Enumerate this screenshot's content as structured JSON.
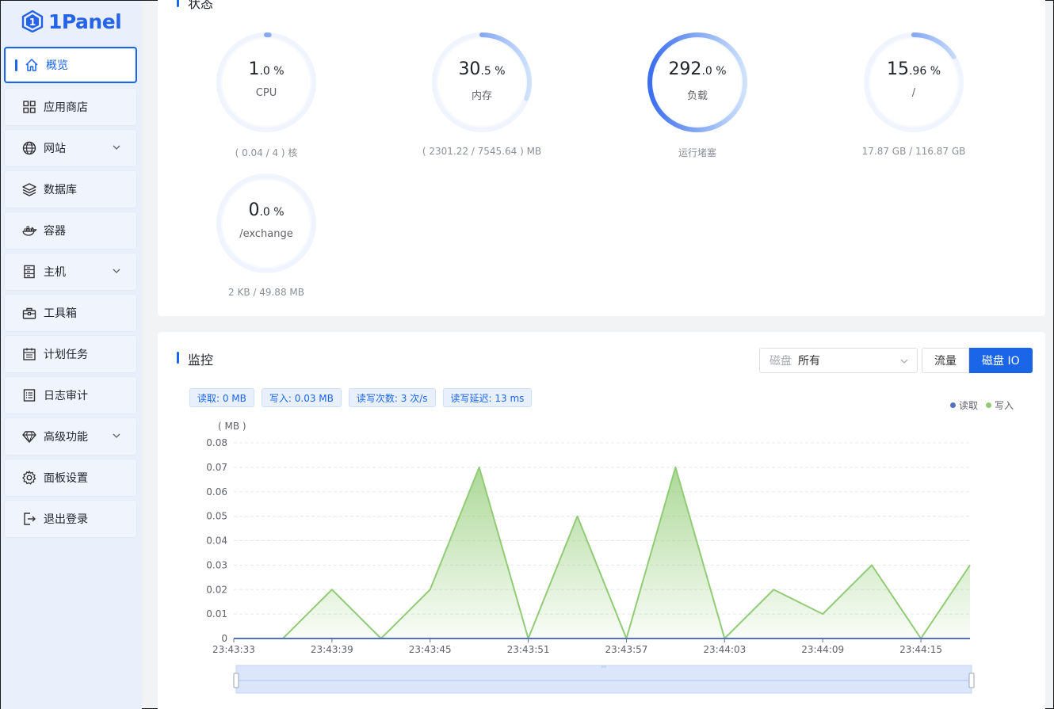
{
  "app": {
    "logo_text": "1Panel"
  },
  "sidebar": {
    "items": [
      {
        "label": "概览",
        "icon": "home-icon",
        "active": true,
        "chevron": false
      },
      {
        "label": "应用商店",
        "icon": "grid-icon",
        "active": false,
        "chevron": false
      },
      {
        "label": "网站",
        "icon": "globe-icon",
        "active": false,
        "chevron": true
      },
      {
        "label": "数据库",
        "icon": "layers-icon",
        "active": false,
        "chevron": false
      },
      {
        "label": "容器",
        "icon": "docker-icon",
        "active": false,
        "chevron": false
      },
      {
        "label": "主机",
        "icon": "server-icon",
        "active": false,
        "chevron": true
      },
      {
        "label": "工具箱",
        "icon": "toolbox-icon",
        "active": false,
        "chevron": false
      },
      {
        "label": "计划任务",
        "icon": "calendar-icon",
        "active": false,
        "chevron": false
      },
      {
        "label": "日志审计",
        "icon": "list-icon",
        "active": false,
        "chevron": false
      },
      {
        "label": "高级功能",
        "icon": "diamond-icon",
        "active": false,
        "chevron": true
      },
      {
        "label": "面板设置",
        "icon": "gear-icon",
        "active": false,
        "chevron": false
      },
      {
        "label": "退出登录",
        "icon": "logout-icon",
        "active": false,
        "chevron": false
      }
    ]
  },
  "status": {
    "title": "状态",
    "gauges": [
      {
        "int": "1",
        "dec": ".0 %",
        "label": "CPU",
        "sub": "( 0.04 / 4 ) 核",
        "percent": 1.0
      },
      {
        "int": "30",
        "dec": ".5 %",
        "label": "内存",
        "sub": "( 2301.22 / 7545.64 ) MB",
        "percent": 30.5
      },
      {
        "int": "292",
        "dec": ".0 %",
        "label": "负载",
        "sub": "运行堵塞",
        "percent": 100
      },
      {
        "int": "15",
        "dec": ".96 %",
        "label": "/",
        "sub": "17.87 GB / 116.87 GB",
        "percent": 15.96
      },
      {
        "int": "0",
        "dec": ".0 %",
        "label": "/exchange",
        "sub": "2 KB / 49.88 MB",
        "percent": 0
      }
    ]
  },
  "monitor": {
    "title": "监控",
    "select_prefix": "磁盘",
    "select_value": "所有",
    "buttons": {
      "traffic": "流量",
      "disk_io": "磁盘 IO"
    },
    "tags": {
      "read": "读取: 0 MB",
      "write": "写入: 0.03 MB",
      "count": "读写次数: 3 次/s",
      "latency": "读写延迟: 13 ms"
    },
    "legend": {
      "read": "读取",
      "write": "写入"
    }
  },
  "chart_data": {
    "type": "area",
    "ylabel": "( MB )",
    "ylim": [
      0,
      0.08
    ],
    "yticks": [
      "0",
      "0.01",
      "0.02",
      "0.03",
      "0.04",
      "0.05",
      "0.06",
      "0.07",
      "0.08"
    ],
    "xticks": [
      "23:43:33",
      "23:43:39",
      "23:43:45",
      "23:43:51",
      "23:43:57",
      "23:44:03",
      "23:44:09",
      "23:44:15"
    ],
    "series": [
      {
        "name": "读取",
        "color": "#5470c6",
        "values": [
          0,
          0,
          0,
          0,
          0,
          0,
          0,
          0,
          0,
          0,
          0,
          0,
          0,
          0,
          0,
          0
        ]
      },
      {
        "name": "写入",
        "color": "#91cc75",
        "values": [
          0,
          0,
          0.02,
          0,
          0.02,
          0.07,
          0,
          0.05,
          0,
          0.07,
          0,
          0.02,
          0.01,
          0.03,
          0,
          0.03
        ]
      }
    ],
    "grid": true
  }
}
